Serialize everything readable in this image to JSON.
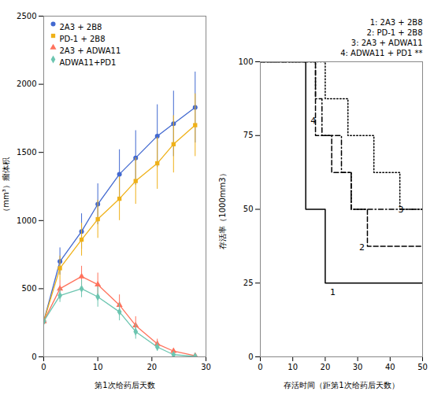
{
  "chart_data": [
    {
      "type": "line",
      "x": [
        0,
        3,
        7,
        10,
        14,
        17,
        21,
        24,
        28
      ],
      "xlabel": "第1次给药后天数",
      "ylabel": "（mm³）瘤体积",
      "xlim": [
        0,
        30
      ],
      "xticks": [
        0,
        10,
        20,
        30
      ],
      "ylim": [
        0,
        2500
      ],
      "yticks": [
        0,
        500,
        1000,
        1500,
        2000,
        2500
      ],
      "grid": false,
      "legend": "upper left",
      "series": [
        {
          "name": "2A3 + 2B8",
          "marker": "circle",
          "values": [
            260,
            700,
            920,
            1120,
            1340,
            1460,
            1620,
            1710,
            1830
          ],
          "yerr": [
            20,
            100,
            130,
            150,
            180,
            200,
            230,
            240,
            260
          ]
        },
        {
          "name": "PD-1 + 2B8",
          "marker": "square",
          "values": [
            260,
            650,
            860,
            1010,
            1160,
            1290,
            1420,
            1560,
            1700
          ],
          "yerr": [
            20,
            90,
            120,
            140,
            160,
            170,
            190,
            210,
            230
          ]
        },
        {
          "name": "2A3 + ADWA11",
          "marker": "triangle",
          "values": [
            260,
            500,
            590,
            530,
            380,
            230,
            95,
            42,
            8
          ],
          "yerr": [
            20,
            60,
            75,
            85,
            75,
            65,
            35,
            18,
            4
          ]
        },
        {
          "name": "ADWA11+PD1",
          "marker": "diamond",
          "values": [
            260,
            450,
            500,
            440,
            330,
            185,
            72,
            16,
            3
          ],
          "yerr": [
            20,
            50,
            65,
            75,
            65,
            55,
            30,
            10,
            2
          ]
        }
      ]
    },
    {
      "type": "step",
      "xlabel": "存活时间（距第1次给药后天数）",
      "ylabel": "存活率（1000mm3）",
      "xlim": [
        0,
        50
      ],
      "xticks": [
        0,
        10,
        20,
        30,
        40,
        50
      ],
      "ylim": [
        0,
        100
      ],
      "yticks": [
        0,
        25,
        50,
        75,
        100
      ],
      "grid": false,
      "legend": "upper right",
      "series": [
        {
          "name": "1: 2A3 + 2B8",
          "line_style": "solid",
          "x": [
            0,
            14,
            14,
            20,
            20,
            21,
            50
          ],
          "values": [
            100,
            100,
            50,
            50,
            25,
            25,
            25
          ]
        },
        {
          "name": "2: PD-1 + 2B8",
          "line_style": "dashed",
          "x": [
            0,
            15,
            17,
            20,
            22,
            25,
            28,
            30,
            33,
            50
          ],
          "values": [
            100,
            100,
            75,
            75,
            62.5,
            62.5,
            50,
            50,
            37.5,
            37.5
          ]
        },
        {
          "name": "3: 2A3 + ADWA11",
          "line_style": "dotted",
          "x": [
            0,
            16,
            20,
            24,
            27,
            31,
            35,
            39,
            43,
            50
          ],
          "values": [
            100,
            100,
            87.5,
            87.5,
            75,
            75,
            62.5,
            62.5,
            50,
            50
          ]
        },
        {
          "name": "4: ADWA11 + PD1 **",
          "line_style": "dashdot",
          "x": [
            0,
            15,
            17,
            19,
            22,
            25,
            28,
            50
          ],
          "values": [
            100,
            100,
            87.5,
            75,
            75,
            62.5,
            50,
            50
          ]
        }
      ],
      "annotations": [
        {
          "text": "4",
          "x": 15,
          "y": 80
        },
        {
          "text": "1",
          "x": 21,
          "y": 22
        },
        {
          "text": "2",
          "x": 30,
          "y": 37
        },
        {
          "text": "3",
          "x": 42,
          "y": 50
        }
      ]
    }
  ]
}
